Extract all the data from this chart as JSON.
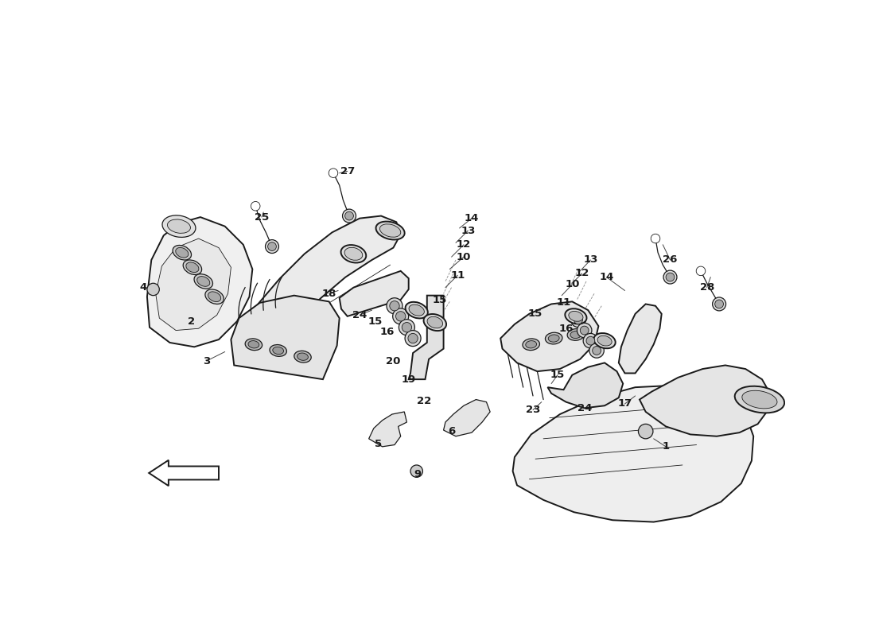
{
  "bg_color": "#ffffff",
  "line_color": "#1a1a1a",
  "label_color": "#1a1a1a",
  "figsize": [
    11.0,
    8.0
  ],
  "dpi": 100,
  "lw_main": 1.4,
  "lw_detail": 0.9,
  "lw_thin": 0.6,
  "left_labels": [
    [
      "4",
      0.52,
      4.55
    ],
    [
      "2",
      1.3,
      4.0
    ],
    [
      "3",
      1.55,
      3.35
    ],
    [
      "25",
      2.45,
      5.7
    ],
    [
      "27",
      3.85,
      6.45
    ],
    [
      "18",
      3.55,
      4.45
    ],
    [
      "24",
      4.05,
      4.1
    ],
    [
      "15",
      4.3,
      4.0
    ],
    [
      "16",
      4.5,
      3.82
    ],
    [
      "20",
      4.6,
      3.35
    ],
    [
      "19",
      4.85,
      3.05
    ],
    [
      "22",
      5.1,
      2.7
    ],
    [
      "5",
      4.35,
      2.0
    ],
    [
      "6",
      5.55,
      2.2
    ],
    [
      "9",
      5.0,
      1.5
    ],
    [
      "10",
      5.75,
      5.05
    ],
    [
      "11",
      5.65,
      4.75
    ],
    [
      "12",
      5.75,
      5.25
    ],
    [
      "13",
      5.82,
      5.48
    ],
    [
      "14",
      5.88,
      5.68
    ],
    [
      "15",
      5.35,
      4.35
    ]
  ],
  "right_labels": [
    [
      "1",
      9.05,
      1.95
    ],
    [
      "10",
      7.52,
      4.6
    ],
    [
      "11",
      7.38,
      4.3
    ],
    [
      "12",
      7.68,
      4.78
    ],
    [
      "13",
      7.82,
      5.0
    ],
    [
      "14",
      8.08,
      4.72
    ],
    [
      "15",
      6.92,
      4.12
    ],
    [
      "15",
      7.28,
      3.12
    ],
    [
      "16",
      7.42,
      3.88
    ],
    [
      "17",
      8.38,
      2.65
    ],
    [
      "23",
      6.88,
      2.55
    ],
    [
      "24",
      7.72,
      2.58
    ],
    [
      "26",
      9.12,
      5.0
    ],
    [
      "28",
      9.72,
      4.55
    ]
  ]
}
